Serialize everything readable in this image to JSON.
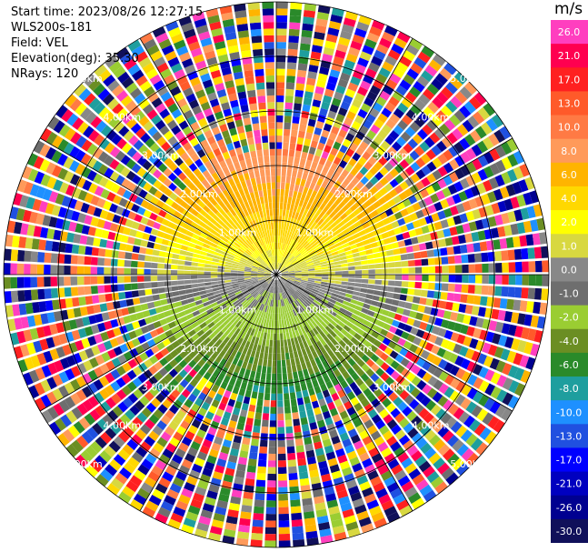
{
  "info": {
    "start_time": "Start time: 2023/08/26 12:27:15",
    "instrument": "WLS200s-181",
    "field": "Field: VEL",
    "elevation": "Elevation(deg): 35.30",
    "nrays": "NRays: 120"
  },
  "colorbar": {
    "unit": "m/s",
    "ticks": [
      "26.0",
      "21.0",
      "17.0",
      "13.0",
      "10.0",
      "8.0",
      "6.0",
      "4.0",
      "2.0",
      "1.0",
      "0.0",
      "-1.0",
      "-2.0",
      "-4.0",
      "-6.0",
      "-8.0",
      "-10.0",
      "-13.0",
      "-17.0",
      "-21.0",
      "-26.0",
      "-30.0"
    ],
    "colors": [
      "#ff3fbf",
      "#ff0050",
      "#ff2020",
      "#ff5a2a",
      "#ff7a44",
      "#ff9a5a",
      "#ffb400",
      "#ffd800",
      "#ffff00",
      "#d8d840",
      "#888888",
      "#6e6e6e",
      "#9acd32",
      "#6b8e23",
      "#2a8a2a",
      "#1e9e9e",
      "#1e90ff",
      "#2050e0",
      "#0000ff",
      "#0000c0",
      "#000090",
      "#10105a"
    ]
  },
  "chart_data": {
    "type": "ppi",
    "field": "VEL",
    "nrays": 120,
    "rings_km": [
      1.0,
      2.0,
      3.0,
      4.0,
      5.0
    ],
    "ring_labels": [
      "1.00km",
      "2.00km",
      "3.00km",
      "4.00km",
      "5.00km"
    ],
    "max_range_km": 5.0,
    "spokes_deg": [
      0,
      30,
      60,
      90,
      120,
      150,
      180,
      210,
      240,
      270,
      300,
      330
    ]
  }
}
